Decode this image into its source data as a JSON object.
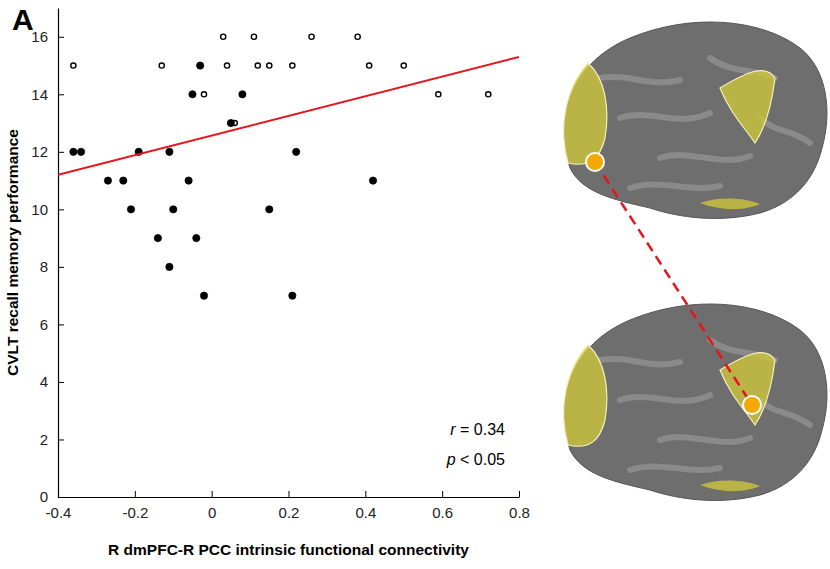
{
  "chart_data": {
    "type": "scatter",
    "title": "A",
    "x_label": "R dmPFC-R PCC intrinsic functional connectivity",
    "y_label": "CVLT recall memory performance",
    "xlim": [
      -0.4,
      0.8
    ],
    "xticks": [
      -0.4,
      -0.2,
      0,
      0.2,
      0.4,
      0.6,
      0.8
    ],
    "ylim": [
      0,
      17
    ],
    "yticks": [
      0,
      2,
      4,
      6,
      8,
      10,
      12,
      14,
      16
    ],
    "grid": false,
    "annotations": [
      "r = 0.34",
      "p < 0.05"
    ],
    "series": [
      {
        "type": "scatter",
        "marker": "open",
        "color": "#000000",
        "x": [
          -0.36,
          -0.13,
          0.03,
          0.04,
          0.11,
          0.12,
          0.15,
          0.21,
          0.26,
          0.38,
          0.41,
          0.5,
          -0.02,
          0.59,
          0.72,
          0.06
        ],
        "values": [
          15,
          15,
          16,
          15,
          16,
          15,
          15,
          15,
          16,
          16,
          15,
          15,
          14,
          14,
          14,
          13
        ]
      },
      {
        "type": "scatter",
        "marker": "filled",
        "color": "#000000",
        "x": [
          -0.36,
          -0.34,
          -0.27,
          -0.23,
          -0.21,
          -0.19,
          -0.14,
          -0.11,
          -0.11,
          -0.1,
          -0.06,
          -0.05,
          -0.04,
          -0.03,
          -0.02,
          0.05,
          0.08,
          0.15,
          0.21,
          0.22,
          0.42
        ],
        "values": [
          12,
          12,
          11,
          11,
          10,
          12,
          9,
          12,
          8,
          10,
          11,
          14,
          9,
          15,
          7,
          13,
          14,
          10,
          7,
          12,
          11
        ]
      },
      {
        "type": "line",
        "line_style": "solid",
        "color": "#e8141c",
        "x": [
          -0.4,
          0.8
        ],
        "values": [
          11.2,
          15.3
        ]
      }
    ]
  }
}
